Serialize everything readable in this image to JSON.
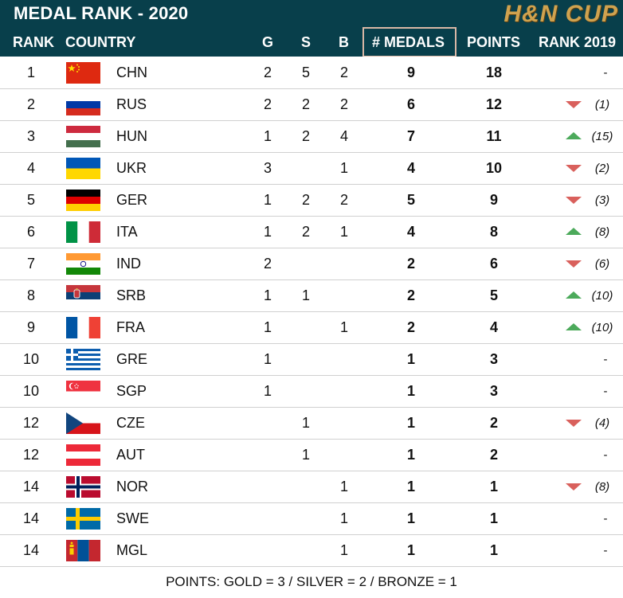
{
  "header": {
    "title": "MEDAL RANK - 2020",
    "brand": "H&N CUP",
    "columns": {
      "rank": "RANK",
      "country": "COUNTRY",
      "g": "G",
      "s": "S",
      "b": "B",
      "medals": "# MEDALS",
      "points": "POINTS",
      "rank_prev": "RANK 2019"
    }
  },
  "colors": {
    "header_bg": "#083f4b",
    "brand_gold": "#cfa24f",
    "arrow_down": "#d9605c",
    "arrow_up": "#4caa5b"
  },
  "rows": [
    {
      "rank": "1",
      "flag": "chn-flag-icon",
      "country": "CHN",
      "g": "2",
      "s": "5",
      "b": "2",
      "medals": "9",
      "points": "18",
      "trend": "none",
      "prev": "-"
    },
    {
      "rank": "2",
      "flag": "rus-flag-icon",
      "country": "RUS",
      "g": "2",
      "s": "2",
      "b": "2",
      "medals": "6",
      "points": "12",
      "trend": "down",
      "prev": "(1)"
    },
    {
      "rank": "3",
      "flag": "hun-flag-icon",
      "country": "HUN",
      "g": "1",
      "s": "2",
      "b": "4",
      "medals": "7",
      "points": "11",
      "trend": "up",
      "prev": "(15)"
    },
    {
      "rank": "4",
      "flag": "ukr-flag-icon",
      "country": "UKR",
      "g": "3",
      "s": "",
      "b": "1",
      "medals": "4",
      "points": "10",
      "trend": "down",
      "prev": "(2)"
    },
    {
      "rank": "5",
      "flag": "ger-flag-icon",
      "country": "GER",
      "g": "1",
      "s": "2",
      "b": "2",
      "medals": "5",
      "points": "9",
      "trend": "down",
      "prev": "(3)"
    },
    {
      "rank": "6",
      "flag": "ita-flag-icon",
      "country": "ITA",
      "g": "1",
      "s": "2",
      "b": "1",
      "medals": "4",
      "points": "8",
      "trend": "up",
      "prev": "(8)"
    },
    {
      "rank": "7",
      "flag": "ind-flag-icon",
      "country": "IND",
      "g": "2",
      "s": "",
      "b": "",
      "medals": "2",
      "points": "6",
      "trend": "down",
      "prev": "(6)"
    },
    {
      "rank": "8",
      "flag": "srb-flag-icon",
      "country": "SRB",
      "g": "1",
      "s": "1",
      "b": "",
      "medals": "2",
      "points": "5",
      "trend": "up",
      "prev": "(10)"
    },
    {
      "rank": "9",
      "flag": "fra-flag-icon",
      "country": "FRA",
      "g": "1",
      "s": "",
      "b": "1",
      "medals": "2",
      "points": "4",
      "trend": "up",
      "prev": "(10)"
    },
    {
      "rank": "10",
      "flag": "gre-flag-icon",
      "country": "GRE",
      "g": "1",
      "s": "",
      "b": "",
      "medals": "1",
      "points": "3",
      "trend": "none",
      "prev": "-"
    },
    {
      "rank": "10",
      "flag": "sgp-flag-icon",
      "country": "SGP",
      "g": "1",
      "s": "",
      "b": "",
      "medals": "1",
      "points": "3",
      "trend": "none",
      "prev": "-"
    },
    {
      "rank": "12",
      "flag": "cze-flag-icon",
      "country": "CZE",
      "g": "",
      "s": "1",
      "b": "",
      "medals": "1",
      "points": "2",
      "trend": "down",
      "prev": "(4)"
    },
    {
      "rank": "12",
      "flag": "aut-flag-icon",
      "country": "AUT",
      "g": "",
      "s": "1",
      "b": "",
      "medals": "1",
      "points": "2",
      "trend": "none",
      "prev": "-"
    },
    {
      "rank": "14",
      "flag": "nor-flag-icon",
      "country": "NOR",
      "g": "",
      "s": "",
      "b": "1",
      "medals": "1",
      "points": "1",
      "trend": "down",
      "prev": "(8)"
    },
    {
      "rank": "14",
      "flag": "swe-flag-icon",
      "country": "SWE",
      "g": "",
      "s": "",
      "b": "1",
      "medals": "1",
      "points": "1",
      "trend": "none",
      "prev": "-"
    },
    {
      "rank": "14",
      "flag": "mgl-flag-icon",
      "country": "MGL",
      "g": "",
      "s": "",
      "b": "1",
      "medals": "1",
      "points": "1",
      "trend": "none",
      "prev": "-"
    }
  ],
  "footer": {
    "text": "POINTS: GOLD = 3 / SILVER = 2 / BRONZE = 1"
  }
}
